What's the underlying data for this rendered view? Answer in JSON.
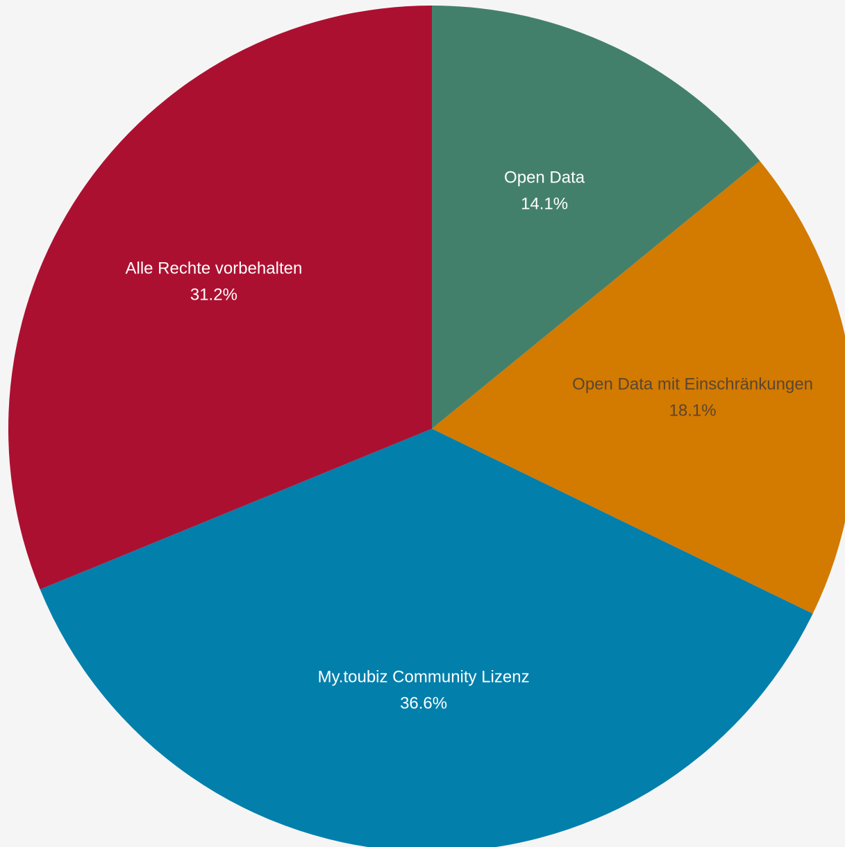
{
  "chart_data": {
    "type": "pie",
    "title": "",
    "slices": [
      {
        "label": "Open Data",
        "value": 14.1,
        "value_label": "14.1%",
        "color": "#43806b",
        "text_color": "#ffffff"
      },
      {
        "label": "Open Data mit Einschränkungen",
        "value": 18.1,
        "value_label": "18.1%",
        "color": "#d37a00",
        "text_color": "#5a4630"
      },
      {
        "label": "My.toubiz Community Lizenz",
        "value": 36.6,
        "value_label": "36.6%",
        "color": "#037fab",
        "text_color": "#ffffff"
      },
      {
        "label": "Alle Rechte vorbehalten",
        "value": 31.2,
        "value_label": "31.2%",
        "color": "#ac1031",
        "text_color": "#ffffff"
      }
    ],
    "start_angle": "12 o'clock",
    "direction": "clockwise",
    "legend": "none",
    "background_color": "#f5f5f5"
  }
}
